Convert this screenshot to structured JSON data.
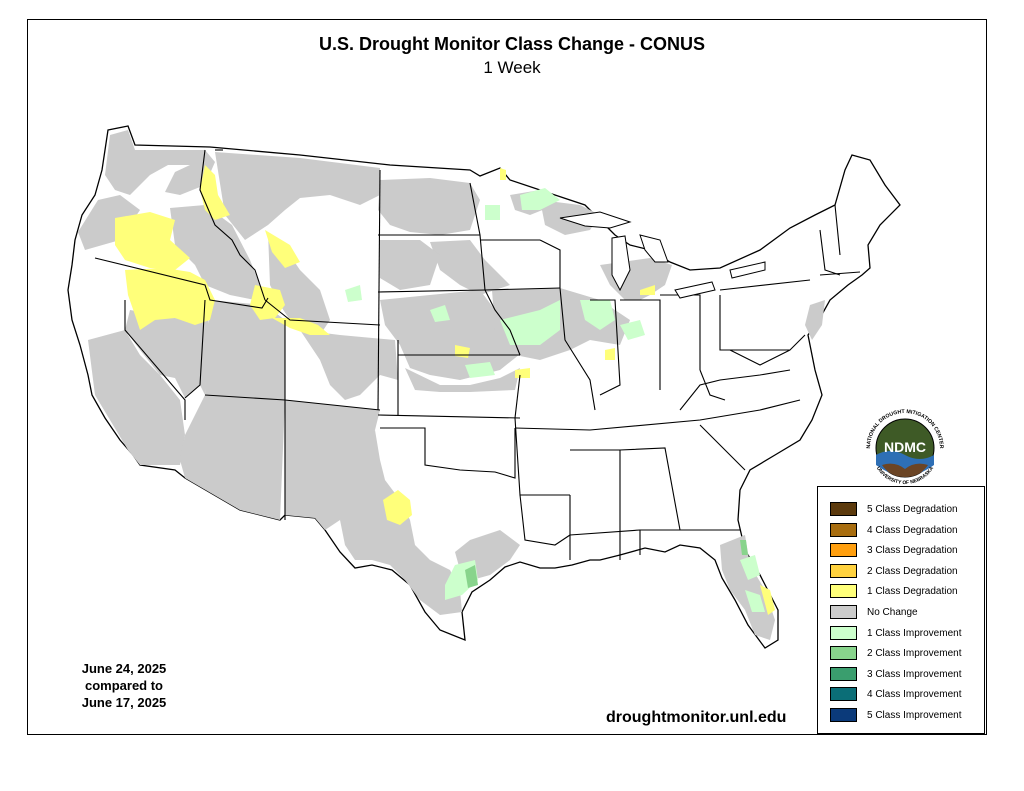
{
  "title": "U.S. Drought Monitor Class Change - CONUS",
  "subtitle": "1 Week",
  "dates": [
    "June 24, 2025",
    "compared to",
    "June 17, 2025"
  ],
  "site": "droughtmonitor.unl.edu",
  "logo": {
    "text": "NDMC",
    "ring_top": "NATIONAL DROUGHT MITIGATION CENTER",
    "ring_bottom": "UNIVERSITY OF NEBRASKA",
    "icon": "ndmc-logo"
  },
  "colors": {
    "frame": "#000000",
    "state_border": "#000000",
    "land": "#ffffff",
    "logo_green": "#3e5a26",
    "logo_blue": "#2e6fb5"
  },
  "legend": [
    {
      "label": "5 Class Degradation",
      "color": "#5c3a0d"
    },
    {
      "label": "4 Class Degradation",
      "color": "#a86d0f"
    },
    {
      "label": "3 Class Degradation",
      "color": "#ff9f0f"
    },
    {
      "label": "2 Class Degradation",
      "color": "#ffd23f"
    },
    {
      "label": "1 Class Degradation",
      "color": "#ffff7a"
    },
    {
      "label": "No Change",
      "color": "#cbcbcb"
    },
    {
      "label": "1 Class Improvement",
      "color": "#ccffcc"
    },
    {
      "label": "2 Class Improvement",
      "color": "#88d48c"
    },
    {
      "label": "3 Class Improvement",
      "color": "#3a9e6e"
    },
    {
      "label": "4 Class Improvement",
      "color": "#0b6e77"
    },
    {
      "label": "5 Class Improvement",
      "color": "#0b3a7a"
    }
  ]
}
